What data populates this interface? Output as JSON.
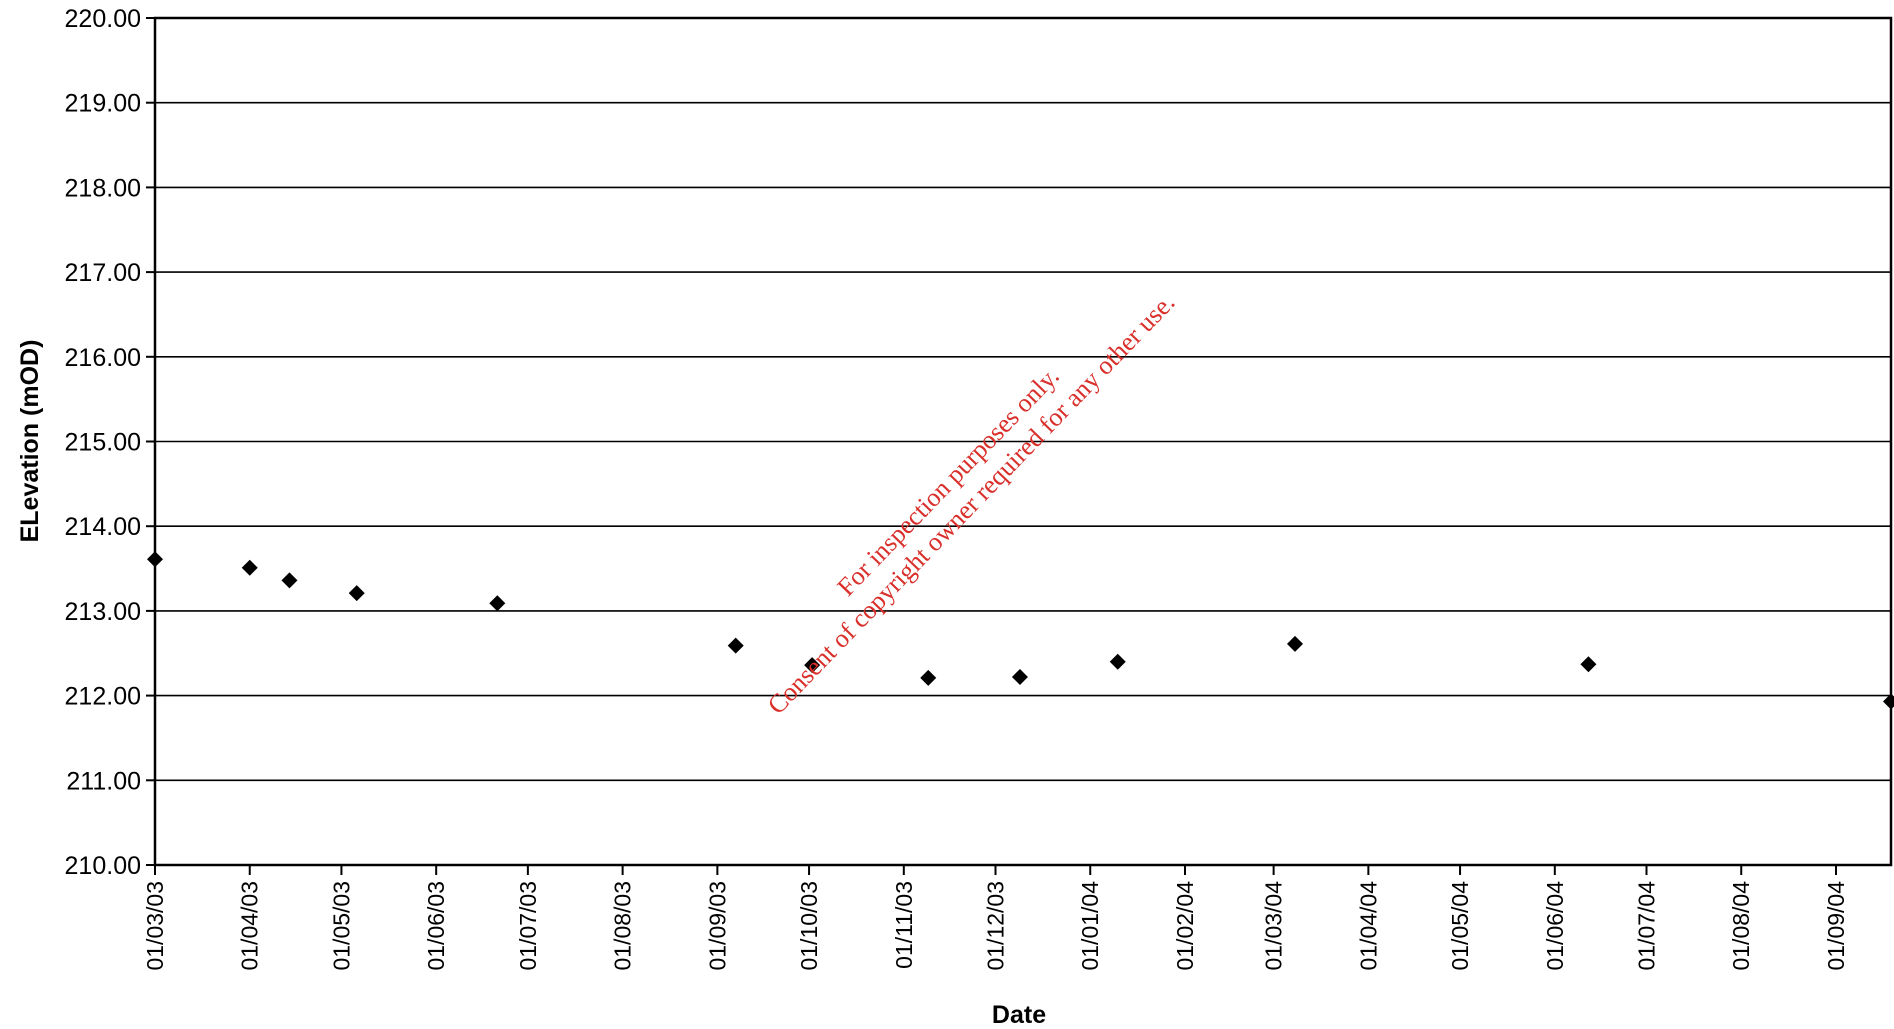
{
  "chart_data": {
    "type": "scatter",
    "xlabel": "Date",
    "ylabel": "ELevation (mOD)",
    "ylim": [
      210,
      220
    ],
    "y_ticks": [
      "210.00",
      "211.00",
      "212.00",
      "213.00",
      "214.00",
      "215.00",
      "216.00",
      "217.00",
      "218.00",
      "219.00",
      "220.00"
    ],
    "x_ticks": [
      "01/03/03",
      "01/04/03",
      "01/05/03",
      "01/06/03",
      "01/07/03",
      "01/08/03",
      "01/09/03",
      "01/10/03",
      "01/11/03",
      "01/12/03",
      "01/01/04",
      "01/02/04",
      "01/03/04",
      "01/04/04",
      "01/05/04",
      "01/06/04",
      "01/07/04",
      "01/08/04",
      "01/09/04"
    ],
    "xlim": [
      "2003-03-01",
      "2004-09-19"
    ],
    "grid": true,
    "marker": "diamond",
    "series": [
      {
        "points": [
          {
            "x": "2003-03-01",
            "y": 213.61
          },
          {
            "x": "2003-04-01",
            "y": 213.51
          },
          {
            "x": "2003-04-14",
            "y": 213.36
          },
          {
            "x": "2003-05-06",
            "y": 213.21
          },
          {
            "x": "2003-06-21",
            "y": 213.09
          },
          {
            "x": "2003-09-07",
            "y": 212.59
          },
          {
            "x": "2003-10-02",
            "y": 212.36
          },
          {
            "x": "2003-11-09",
            "y": 212.21
          },
          {
            "x": "2003-12-09",
            "y": 212.22
          },
          {
            "x": "2004-01-10",
            "y": 212.4
          },
          {
            "x": "2004-03-08",
            "y": 212.61
          },
          {
            "x": "2004-06-12",
            "y": 212.37
          },
          {
            "x": "2004-09-19",
            "y": 211.93
          }
        ]
      }
    ]
  },
  "watermark": {
    "line1": "For inspection purposes only.",
    "line2": "Consent of copyright owner required for any other use."
  }
}
